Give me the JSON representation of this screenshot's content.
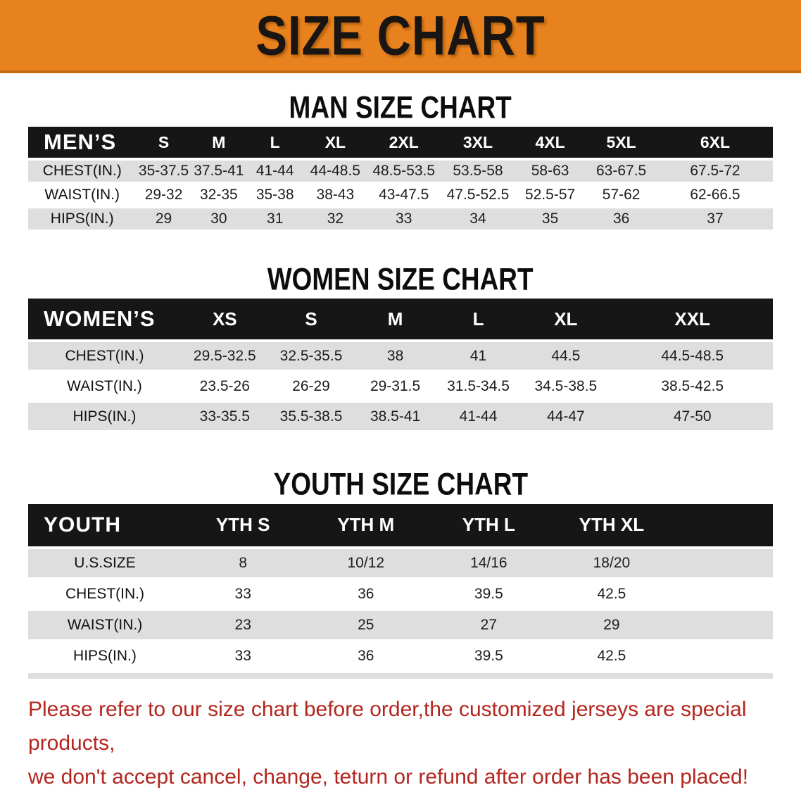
{
  "banner": {
    "title": "SIZE CHART"
  },
  "colors": {
    "banner_bg": "#E8821E",
    "banner_text": "#191512",
    "table_header_bar": "#161616",
    "row_stripe_gray": "#DEDEDE",
    "disclaimer_red": "#B3261F"
  },
  "men": {
    "heading": "MAN SIZE CHART",
    "table": {
      "header": [
        "MEN’S",
        "S",
        "M",
        "L",
        "XL",
        "2XL",
        "3XL",
        "4XL",
        "5XL",
        "6XL"
      ],
      "rows": [
        {
          "label": "CHEST(IN.)",
          "values": [
            "35-37.5",
            "37.5-41",
            "41-44",
            "44-48.5",
            "48.5-53.5",
            "53.5-58",
            "58-63",
            "63-67.5",
            "67.5-72"
          ]
        },
        {
          "label": "WAIST(IN.)",
          "values": [
            "29-32",
            "32-35",
            "35-38",
            "38-43",
            "43-47.5",
            "47.5-52.5",
            "52.5-57",
            "57-62",
            "62-66.5"
          ]
        },
        {
          "label": "HIPS(IN.)",
          "values": [
            "29",
            "30",
            "31",
            "32",
            "33",
            "34",
            "35",
            "36",
            "37"
          ]
        }
      ]
    }
  },
  "women": {
    "heading": "WOMEN SIZE CHART",
    "table": {
      "header": [
        "WOMEN’S",
        "XS",
        "S",
        "M",
        "L",
        "XL",
        "XXL"
      ],
      "rows": [
        {
          "label": "CHEST(IN.)",
          "values": [
            "29.5-32.5",
            "32.5-35.5",
            "38",
            "41",
            "44.5",
            "44.5-48.5"
          ]
        },
        {
          "label": "WAIST(IN.)",
          "values": [
            "23.5-26",
            "26-29",
            "29-31.5",
            "31.5-34.5",
            "34.5-38.5",
            "38.5-42.5"
          ]
        },
        {
          "label": "HIPS(IN.)",
          "values": [
            "33-35.5",
            "35.5-38.5",
            "38.5-41",
            "41-44",
            "44-47",
            "47-50"
          ]
        }
      ]
    }
  },
  "youth": {
    "heading": "YOUTH SIZE CHART",
    "table": {
      "header": [
        "YOUTH",
        "YTH S",
        "YTH M",
        "YTH L",
        "YTH XL"
      ],
      "rows": [
        {
          "label": "U.S.SIZE",
          "values": [
            "8",
            "10/12",
            "14/16",
            "18/20"
          ]
        },
        {
          "label": "CHEST(IN.)",
          "values": [
            "33",
            "36",
            "39.5",
            "42.5"
          ]
        },
        {
          "label": "WAIST(IN.)",
          "values": [
            "23",
            "25",
            "27",
            "29"
          ]
        },
        {
          "label": "HIPS(IN.)",
          "values": [
            "33",
            "36",
            "39.5",
            "42.5"
          ]
        }
      ]
    }
  },
  "disclaimer": {
    "line1": "Please refer to our size chart before order,the customized jerseys are special products,",
    "line2": "we don't accept cancel, change, teturn or refund after order has been placed!"
  }
}
